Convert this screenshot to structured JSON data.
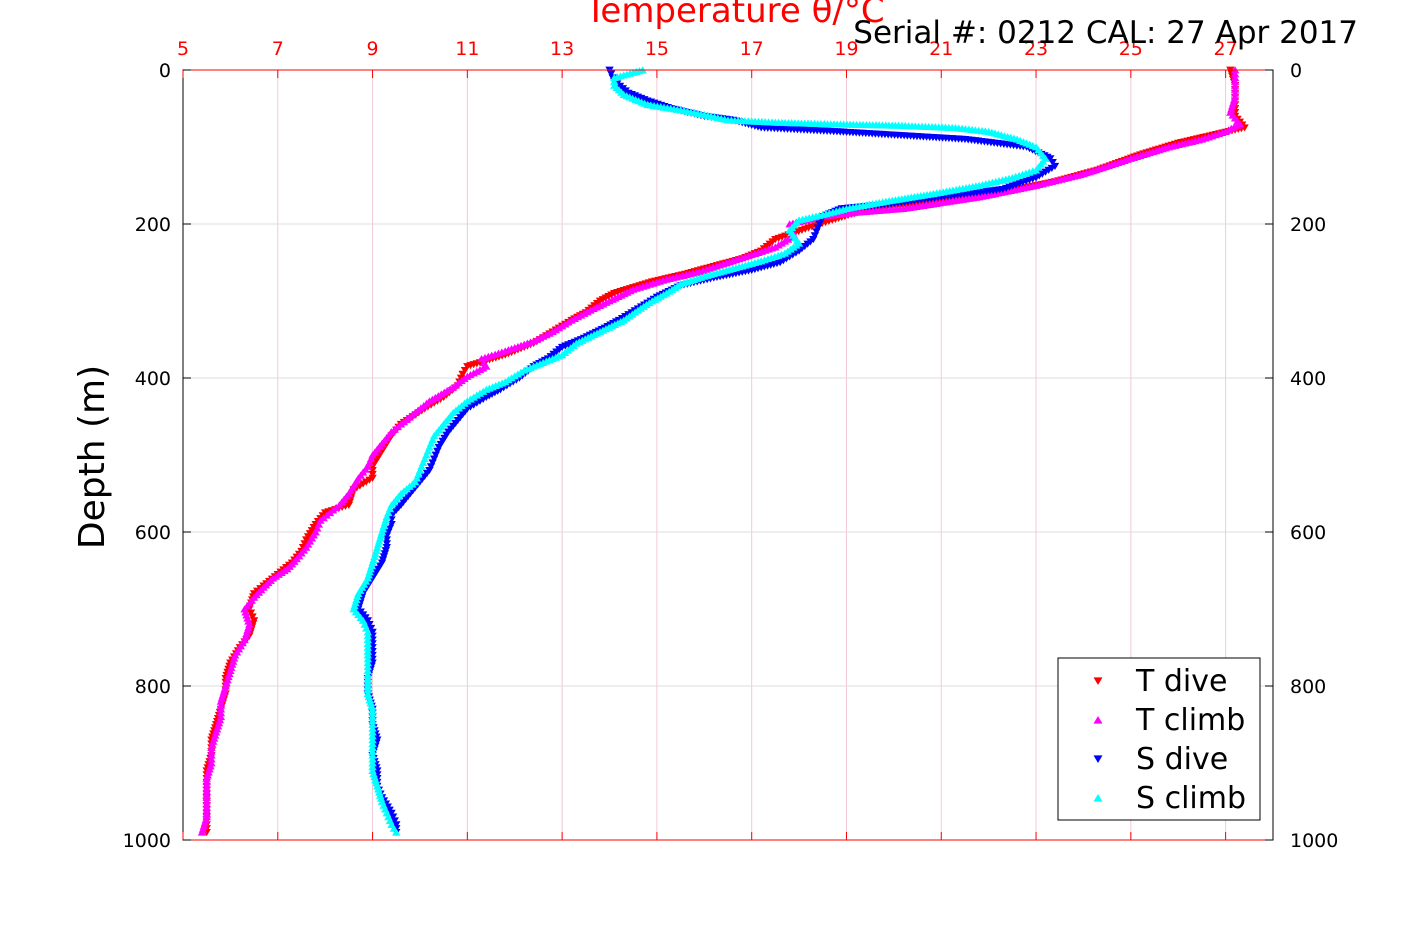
{
  "header": {
    "serial_cal": "Serial #: 0212  CAL: 27 Apr 2017"
  },
  "chart_data": {
    "type": "scatter",
    "title": "Temperature θ/°C",
    "xlabel_top": "Temperature θ/°C",
    "ylabel": "Depth (m)",
    "xlim": [
      5,
      28
    ],
    "ylim": [
      0,
      1000
    ],
    "y_reversed": true,
    "x_ticks": [
      5,
      7,
      9,
      11,
      13,
      15,
      17,
      19,
      21,
      23,
      25,
      27
    ],
    "y_ticks": [
      0,
      200,
      400,
      600,
      800,
      1000
    ],
    "grid": true,
    "legend_position": "bottom-right",
    "colors": {
      "axis_top": "#ff0000",
      "axis_other": "#000000",
      "grid_x": "#f2c8d8",
      "grid_y": "#dddddd"
    },
    "series": [
      {
        "name": "T dive",
        "color": "#ff0000",
        "marker": "triangle-down",
        "points": [
          [
            27.1,
            0
          ],
          [
            27.2,
            20
          ],
          [
            27.2,
            40
          ],
          [
            27.2,
            60
          ],
          [
            27.4,
            75
          ],
          [
            26.0,
            95
          ],
          [
            25.2,
            110
          ],
          [
            24.3,
            130
          ],
          [
            23.4,
            145
          ],
          [
            22.2,
            160
          ],
          [
            20.4,
            175
          ],
          [
            19.5,
            180
          ],
          [
            18.7,
            195
          ],
          [
            18.2,
            205
          ],
          [
            17.5,
            220
          ],
          [
            17.2,
            235
          ],
          [
            16.8,
            245
          ],
          [
            16.2,
            255
          ],
          [
            15.6,
            265
          ],
          [
            14.9,
            275
          ],
          [
            14.1,
            290
          ],
          [
            13.8,
            300
          ],
          [
            13.5,
            315
          ],
          [
            13.2,
            325
          ],
          [
            12.8,
            340
          ],
          [
            12.4,
            355
          ],
          [
            11.8,
            370
          ],
          [
            11.0,
            385
          ],
          [
            10.9,
            395
          ],
          [
            10.8,
            410
          ],
          [
            10.5,
            425
          ],
          [
            10.1,
            440
          ],
          [
            9.6,
            460
          ],
          [
            9.4,
            475
          ],
          [
            9.2,
            495
          ],
          [
            9.0,
            515
          ],
          [
            9.0,
            530
          ],
          [
            8.6,
            545
          ],
          [
            8.5,
            565
          ],
          [
            8.0,
            575
          ],
          [
            7.8,
            590
          ],
          [
            7.6,
            610
          ],
          [
            7.5,
            625
          ],
          [
            7.3,
            640
          ],
          [
            7.0,
            655
          ],
          [
            6.7,
            670
          ],
          [
            6.5,
            680
          ],
          [
            6.4,
            700
          ],
          [
            6.5,
            715
          ],
          [
            6.4,
            735
          ],
          [
            6.2,
            750
          ],
          [
            6.0,
            770
          ],
          [
            5.9,
            790
          ],
          [
            5.9,
            810
          ],
          [
            5.8,
            830
          ],
          [
            5.7,
            850
          ],
          [
            5.6,
            870
          ],
          [
            5.6,
            890
          ],
          [
            5.5,
            910
          ],
          [
            5.5,
            930
          ],
          [
            5.5,
            950
          ],
          [
            5.5,
            970
          ],
          [
            5.5,
            990
          ]
        ]
      },
      {
        "name": "T climb",
        "color": "#ff00ff",
        "marker": "triangle-up",
        "points": [
          [
            27.2,
            0
          ],
          [
            27.2,
            15
          ],
          [
            27.2,
            35
          ],
          [
            27.1,
            55
          ],
          [
            27.3,
            70
          ],
          [
            27.0,
            80
          ],
          [
            26.5,
            90
          ],
          [
            25.8,
            100
          ],
          [
            25.0,
            115
          ],
          [
            24.0,
            135
          ],
          [
            23.0,
            150
          ],
          [
            21.8,
            165
          ],
          [
            20.2,
            180
          ],
          [
            19.2,
            185
          ],
          [
            18.5,
            190
          ],
          [
            17.8,
            200
          ],
          [
            17.9,
            215
          ],
          [
            17.5,
            230
          ],
          [
            17.0,
            240
          ],
          [
            16.4,
            252
          ],
          [
            15.9,
            262
          ],
          [
            15.2,
            272
          ],
          [
            14.5,
            285
          ],
          [
            14.0,
            300
          ],
          [
            13.6,
            312
          ],
          [
            13.2,
            325
          ],
          [
            12.8,
            340
          ],
          [
            12.4,
            352
          ],
          [
            11.8,
            365
          ],
          [
            11.3,
            375
          ],
          [
            11.4,
            385
          ],
          [
            11.0,
            398
          ],
          [
            10.7,
            412
          ],
          [
            10.2,
            430
          ],
          [
            9.9,
            445
          ],
          [
            9.6,
            460
          ],
          [
            9.4,
            470
          ],
          [
            9.2,
            485
          ],
          [
            9.0,
            500
          ],
          [
            8.9,
            515
          ],
          [
            8.7,
            530
          ],
          [
            8.5,
            550
          ],
          [
            8.3,
            565
          ],
          [
            8.1,
            575
          ],
          [
            7.9,
            585
          ],
          [
            7.8,
            600
          ],
          [
            7.6,
            620
          ],
          [
            7.4,
            635
          ],
          [
            7.2,
            648
          ],
          [
            6.9,
            660
          ],
          [
            6.7,
            672
          ],
          [
            6.5,
            685
          ],
          [
            6.3,
            700
          ],
          [
            6.4,
            720
          ],
          [
            6.3,
            740
          ],
          [
            6.1,
            760
          ],
          [
            6.0,
            780
          ],
          [
            5.9,
            800
          ],
          [
            5.8,
            820
          ],
          [
            5.8,
            840
          ],
          [
            5.7,
            860
          ],
          [
            5.6,
            880
          ],
          [
            5.6,
            900
          ],
          [
            5.5,
            920
          ],
          [
            5.5,
            945
          ],
          [
            5.5,
            970
          ],
          [
            5.4,
            990
          ]
        ]
      },
      {
        "name": "S dive",
        "color": "#0000ff",
        "marker": "triangle-down",
        "points": [
          [
            14.0,
            0
          ],
          [
            14.1,
            15
          ],
          [
            14.4,
            30
          ],
          [
            14.8,
            40
          ],
          [
            15.3,
            50
          ],
          [
            16.0,
            60
          ],
          [
            16.6,
            65
          ],
          [
            17.2,
            75
          ],
          [
            18.8,
            80
          ],
          [
            21.5,
            90
          ],
          [
            22.8,
            100
          ],
          [
            23.3,
            115
          ],
          [
            23.4,
            125
          ],
          [
            23.0,
            140
          ],
          [
            22.3,
            155
          ],
          [
            21.0,
            165
          ],
          [
            19.8,
            175
          ],
          [
            18.9,
            180
          ],
          [
            18.5,
            190
          ],
          [
            18.4,
            205
          ],
          [
            18.3,
            220
          ],
          [
            18.0,
            235
          ],
          [
            17.6,
            250
          ],
          [
            17.0,
            260
          ],
          [
            16.2,
            270
          ],
          [
            15.5,
            280
          ],
          [
            15.0,
            295
          ],
          [
            14.6,
            310
          ],
          [
            14.2,
            325
          ],
          [
            13.9,
            335
          ],
          [
            13.4,
            350
          ],
          [
            13.0,
            360
          ],
          [
            12.7,
            375
          ],
          [
            12.4,
            385
          ],
          [
            12.1,
            400
          ],
          [
            11.7,
            415
          ],
          [
            11.4,
            425
          ],
          [
            11.0,
            440
          ],
          [
            10.8,
            455
          ],
          [
            10.6,
            470
          ],
          [
            10.4,
            490
          ],
          [
            10.3,
            505
          ],
          [
            10.2,
            520
          ],
          [
            10.0,
            535
          ],
          [
            9.8,
            550
          ],
          [
            9.6,
            565
          ],
          [
            9.4,
            578
          ],
          [
            9.4,
            590
          ],
          [
            9.3,
            605
          ],
          [
            9.3,
            620
          ],
          [
            9.2,
            640
          ],
          [
            9.0,
            660
          ],
          [
            8.8,
            680
          ],
          [
            8.7,
            700
          ],
          [
            8.9,
            715
          ],
          [
            9.0,
            730
          ],
          [
            9.0,
            750
          ],
          [
            9.0,
            770
          ],
          [
            8.9,
            790
          ],
          [
            8.9,
            810
          ],
          [
            9.0,
            830
          ],
          [
            9.0,
            850
          ],
          [
            9.1,
            870
          ],
          [
            9.0,
            890
          ],
          [
            9.1,
            910
          ],
          [
            9.1,
            930
          ],
          [
            9.2,
            945
          ],
          [
            9.4,
            965
          ],
          [
            9.5,
            980
          ],
          [
            9.5,
            990
          ]
        ]
      },
      {
        "name": "S climb",
        "color": "#00ffff",
        "marker": "triangle-up",
        "points": [
          [
            14.7,
            0
          ],
          [
            14.1,
            10
          ],
          [
            14.1,
            20
          ],
          [
            14.3,
            32
          ],
          [
            14.8,
            45
          ],
          [
            15.5,
            52
          ],
          [
            16.0,
            58
          ],
          [
            16.5,
            65
          ],
          [
            17.5,
            68
          ],
          [
            18.6,
            70
          ],
          [
            20.1,
            72
          ],
          [
            21.3,
            75
          ],
          [
            22.0,
            80
          ],
          [
            22.6,
            90
          ],
          [
            23.0,
            100
          ],
          [
            23.2,
            115
          ],
          [
            23.0,
            130
          ],
          [
            22.5,
            140
          ],
          [
            21.8,
            150
          ],
          [
            20.9,
            160
          ],
          [
            19.9,
            170
          ],
          [
            19.0,
            180
          ],
          [
            18.5,
            188
          ],
          [
            18.0,
            195
          ],
          [
            17.8,
            208
          ],
          [
            18.0,
            225
          ],
          [
            17.7,
            238
          ],
          [
            17.2,
            248
          ],
          [
            16.6,
            258
          ],
          [
            16.0,
            268
          ],
          [
            15.5,
            278
          ],
          [
            15.2,
            290
          ],
          [
            14.9,
            300
          ],
          [
            14.6,
            312
          ],
          [
            14.3,
            325
          ],
          [
            13.8,
            340
          ],
          [
            13.3,
            355
          ],
          [
            13.0,
            370
          ],
          [
            12.6,
            380
          ],
          [
            12.2,
            390
          ],
          [
            11.8,
            405
          ],
          [
            11.4,
            415
          ],
          [
            11.0,
            430
          ],
          [
            10.7,
            445
          ],
          [
            10.5,
            460
          ],
          [
            10.3,
            475
          ],
          [
            10.2,
            490
          ],
          [
            10.1,
            505
          ],
          [
            10.0,
            520
          ],
          [
            9.9,
            535
          ],
          [
            9.6,
            550
          ],
          [
            9.4,
            565
          ],
          [
            9.3,
            580
          ],
          [
            9.2,
            600
          ],
          [
            9.1,
            620
          ],
          [
            9.0,
            640
          ],
          [
            8.9,
            660
          ],
          [
            8.7,
            680
          ],
          [
            8.6,
            700
          ],
          [
            8.8,
            715
          ],
          [
            8.9,
            730
          ],
          [
            8.9,
            750
          ],
          [
            8.9,
            770
          ],
          [
            8.9,
            790
          ],
          [
            8.9,
            810
          ],
          [
            9.0,
            830
          ],
          [
            9.0,
            850
          ],
          [
            9.0,
            870
          ],
          [
            9.0,
            890
          ],
          [
            9.0,
            910
          ],
          [
            9.1,
            930
          ],
          [
            9.2,
            950
          ],
          [
            9.3,
            965
          ],
          [
            9.4,
            980
          ],
          [
            9.5,
            990
          ]
        ]
      }
    ]
  }
}
